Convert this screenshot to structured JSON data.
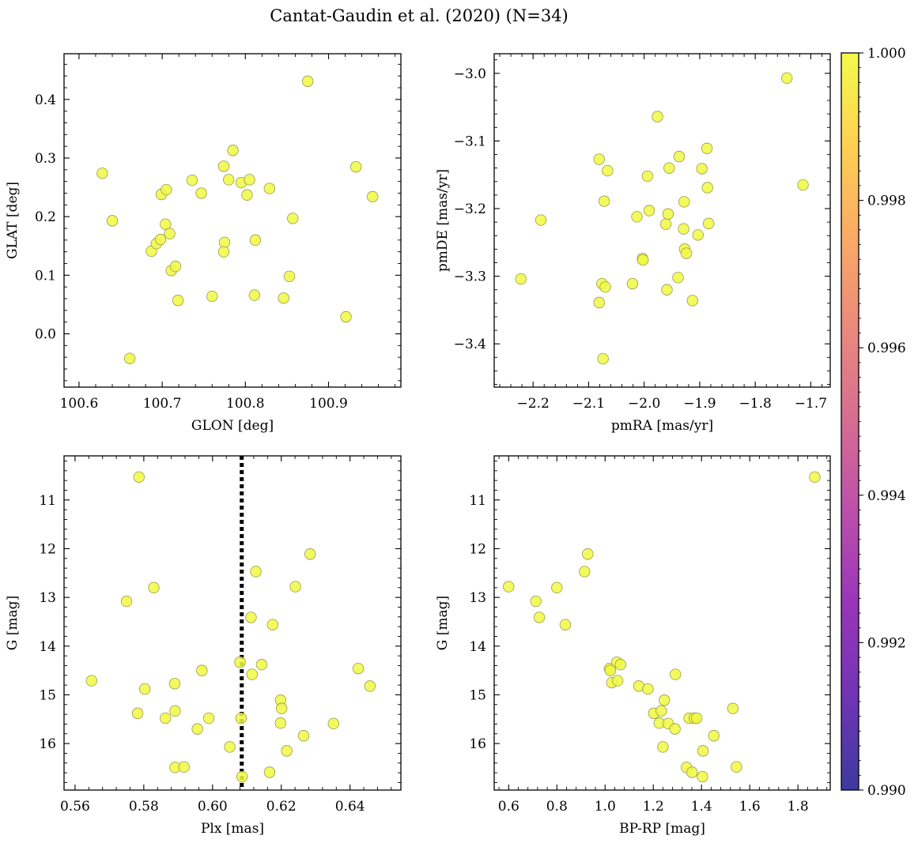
{
  "figure": {
    "title": "Cantat-Gaudin et al. (2020) (N=34)"
  },
  "colorbar": {
    "min": 0.99,
    "max": 1.0,
    "colormap": "plasma",
    "tick_values": [
      0.99,
      0.992,
      0.994,
      0.996,
      0.998,
      1.0
    ],
    "tick_labels": [
      "0.990",
      "0.992",
      "0.994",
      "0.996",
      "0.998",
      "1.000"
    ]
  },
  "style": {
    "marker_color": "#f0f942",
    "marker_edge": "#9a9a50",
    "vline_color": "#000000"
  },
  "chart_data": [
    {
      "type": "scatter",
      "id": "glon-glat",
      "xlabel": "GLON [deg]",
      "ylabel": "GLAT [deg]",
      "xlim": [
        100.582,
        100.987
      ],
      "ylim": [
        -0.091,
        0.478
      ],
      "invert_y": false,
      "xticks": [
        100.6,
        100.7,
        100.8,
        100.9
      ],
      "xtick_labels": [
        "100.6",
        "100.7",
        "100.8",
        "100.9"
      ],
      "yticks": [
        0.0,
        0.1,
        0.2,
        0.3,
        0.4
      ],
      "ytick_labels": [
        "0.0",
        "0.1",
        "0.2",
        "0.3",
        "0.4"
      ],
      "points": [
        [
          100.628,
          0.274
        ],
        [
          100.64,
          0.193
        ],
        [
          100.661,
          -0.042
        ],
        [
          100.687,
          0.141
        ],
        [
          100.693,
          0.154
        ],
        [
          100.698,
          0.161
        ],
        [
          100.699,
          0.238
        ],
        [
          100.705,
          0.246
        ],
        [
          100.704,
          0.187
        ],
        [
          100.709,
          0.171
        ],
        [
          100.711,
          0.108
        ],
        [
          100.716,
          0.115
        ],
        [
          100.719,
          0.057
        ],
        [
          100.736,
          0.262
        ],
        [
          100.747,
          0.24
        ],
        [
          100.76,
          0.064
        ],
        [
          100.774,
          0.286
        ],
        [
          100.775,
          0.156
        ],
        [
          100.774,
          0.14
        ],
        [
          100.78,
          0.263
        ],
        [
          100.785,
          0.313
        ],
        [
          100.795,
          0.258
        ],
        [
          100.802,
          0.237
        ],
        [
          100.805,
          0.263
        ],
        [
          100.811,
          0.066
        ],
        [
          100.812,
          0.16
        ],
        [
          100.829,
          0.248
        ],
        [
          100.846,
          0.061
        ],
        [
          100.853,
          0.098
        ],
        [
          100.857,
          0.197
        ],
        [
          100.875,
          0.431
        ],
        [
          100.921,
          0.029
        ],
        [
          100.933,
          0.285
        ],
        [
          100.953,
          0.234
        ]
      ]
    },
    {
      "type": "scatter",
      "id": "pmra-pmde",
      "xlabel": "pmRA [mas/yr]",
      "ylabel": "pmDE [mas/yr]",
      "xlim": [
        -2.27,
        -1.665
      ],
      "ylim": [
        -3.464,
        -2.971
      ],
      "invert_y": false,
      "xticks": [
        -2.2,
        -2.1,
        -2.0,
        -1.9,
        -1.8,
        -1.7
      ],
      "xtick_labels": [
        "−2.2",
        "−2.1",
        "−2.0",
        "−1.9",
        "−1.8",
        "−1.7"
      ],
      "yticks": [
        -3.0,
        -3.1,
        -3.2,
        -3.3,
        -3.4
      ],
      "ytick_labels": [
        "−3.0",
        "−3.1",
        "−3.2",
        "−3.3",
        "−3.4"
      ],
      "points": [
        [
          -2.222,
          -3.304
        ],
        [
          -2.186,
          -3.217
        ],
        [
          -2.081,
          -3.127
        ],
        [
          -2.081,
          -3.339
        ],
        [
          -2.076,
          -3.311
        ],
        [
          -2.074,
          -3.422
        ],
        [
          -2.072,
          -3.189
        ],
        [
          -2.07,
          -3.316
        ],
        [
          -2.066,
          -3.144
        ],
        [
          -2.021,
          -3.311
        ],
        [
          -2.013,
          -3.212
        ],
        [
          -2.003,
          -3.274
        ],
        [
          -2.002,
          -3.276
        ],
        [
          -1.994,
          -3.152
        ],
        [
          -1.991,
          -3.203
        ],
        [
          -1.976,
          -3.064
        ],
        [
          -1.961,
          -3.223
        ],
        [
          -1.959,
          -3.32
        ],
        [
          -1.957,
          -3.208
        ],
        [
          -1.955,
          -3.14
        ],
        [
          -1.939,
          -3.302
        ],
        [
          -1.937,
          -3.123
        ],
        [
          -1.929,
          -3.23
        ],
        [
          -1.928,
          -3.19
        ],
        [
          -1.927,
          -3.26
        ],
        [
          -1.924,
          -3.266
        ],
        [
          -1.913,
          -3.336
        ],
        [
          -1.903,
          -3.239
        ],
        [
          -1.896,
          -3.141
        ],
        [
          -1.887,
          -3.111
        ],
        [
          -1.886,
          -3.169
        ],
        [
          -1.884,
          -3.222
        ],
        [
          -1.743,
          -3.007
        ],
        [
          -1.714,
          -3.165
        ]
      ]
    },
    {
      "type": "scatter",
      "id": "plx-g",
      "xlabel": "Plx [mas]",
      "ylabel": "G [mag]",
      "xlim": [
        0.5568,
        0.6548
      ],
      "ylim": [
        16.955,
        10.095
      ],
      "invert_y": true,
      "xticks": [
        0.56,
        0.58,
        0.6,
        0.62,
        0.64
      ],
      "xtick_labels": [
        "0.56",
        "0.58",
        "0.60",
        "0.62",
        "0.64"
      ],
      "yticks": [
        11,
        12,
        13,
        14,
        15,
        16
      ],
      "ytick_labels": [
        "11",
        "12",
        "13",
        "14",
        "15",
        "16"
      ],
      "vline": 0.6085,
      "points": [
        [
          0.5648,
          14.71
        ],
        [
          0.575,
          13.08
        ],
        [
          0.5782,
          15.38
        ],
        [
          0.5786,
          10.53
        ],
        [
          0.5803,
          14.88
        ],
        [
          0.5829,
          12.8
        ],
        [
          0.5863,
          15.48
        ],
        [
          0.589,
          14.77
        ],
        [
          0.5891,
          15.33
        ],
        [
          0.5891,
          16.49
        ],
        [
          0.5917,
          16.48
        ],
        [
          0.5956,
          15.7
        ],
        [
          0.5969,
          14.5
        ],
        [
          0.5989,
          15.48
        ],
        [
          0.605,
          16.07
        ],
        [
          0.608,
          14.33
        ],
        [
          0.6083,
          15.48
        ],
        [
          0.6086,
          16.68
        ],
        [
          0.6112,
          13.41
        ],
        [
          0.6115,
          14.58
        ],
        [
          0.6126,
          12.47
        ],
        [
          0.6143,
          14.38
        ],
        [
          0.6166,
          16.59
        ],
        [
          0.6175,
          13.56
        ],
        [
          0.6198,
          15.11
        ],
        [
          0.6198,
          15.58
        ],
        [
          0.6201,
          15.28
        ],
        [
          0.6216,
          16.15
        ],
        [
          0.6241,
          12.78
        ],
        [
          0.6265,
          15.84
        ],
        [
          0.6284,
          12.11
        ],
        [
          0.6352,
          15.59
        ],
        [
          0.6424,
          14.46
        ],
        [
          0.6458,
          14.82
        ]
      ]
    },
    {
      "type": "scatter",
      "id": "bprp-g",
      "xlabel": "BP-RP [mag]",
      "ylabel": "G [mag]",
      "xlim": [
        0.54,
        1.934
      ],
      "ylim": [
        16.955,
        10.095
      ],
      "invert_y": true,
      "xticks": [
        0.6,
        0.8,
        1.0,
        1.2,
        1.4,
        1.6,
        1.8
      ],
      "xtick_labels": [
        "0.6",
        "0.8",
        "1.0",
        "1.2",
        "1.4",
        "1.6",
        "1.8"
      ],
      "yticks": [
        11,
        12,
        13,
        14,
        15,
        16
      ],
      "ytick_labels": [
        "11",
        "12",
        "13",
        "14",
        "15",
        "16"
      ],
      "points": [
        [
          0.6,
          12.78
        ],
        [
          0.713,
          13.08
        ],
        [
          0.727,
          13.41
        ],
        [
          0.8,
          12.8
        ],
        [
          0.835,
          13.56
        ],
        [
          0.915,
          12.47
        ],
        [
          0.928,
          12.11
        ],
        [
          1.018,
          14.46
        ],
        [
          1.022,
          14.5
        ],
        [
          1.028,
          14.75
        ],
        [
          1.049,
          14.33
        ],
        [
          1.052,
          14.71
        ],
        [
          1.064,
          14.38
        ],
        [
          1.14,
          14.82
        ],
        [
          1.178,
          14.88
        ],
        [
          1.202,
          15.38
        ],
        [
          1.225,
          15.58
        ],
        [
          1.233,
          15.33
        ],
        [
          1.24,
          16.07
        ],
        [
          1.246,
          15.11
        ],
        [
          1.262,
          15.59
        ],
        [
          1.29,
          15.7
        ],
        [
          1.292,
          14.58
        ],
        [
          1.338,
          16.49
        ],
        [
          1.349,
          15.48
        ],
        [
          1.361,
          16.59
        ],
        [
          1.37,
          15.48
        ],
        [
          1.38,
          15.48
        ],
        [
          1.404,
          16.68
        ],
        [
          1.406,
          16.15
        ],
        [
          1.451,
          15.84
        ],
        [
          1.53,
          15.28
        ],
        [
          1.545,
          16.48
        ],
        [
          1.87,
          10.53
        ]
      ]
    }
  ]
}
